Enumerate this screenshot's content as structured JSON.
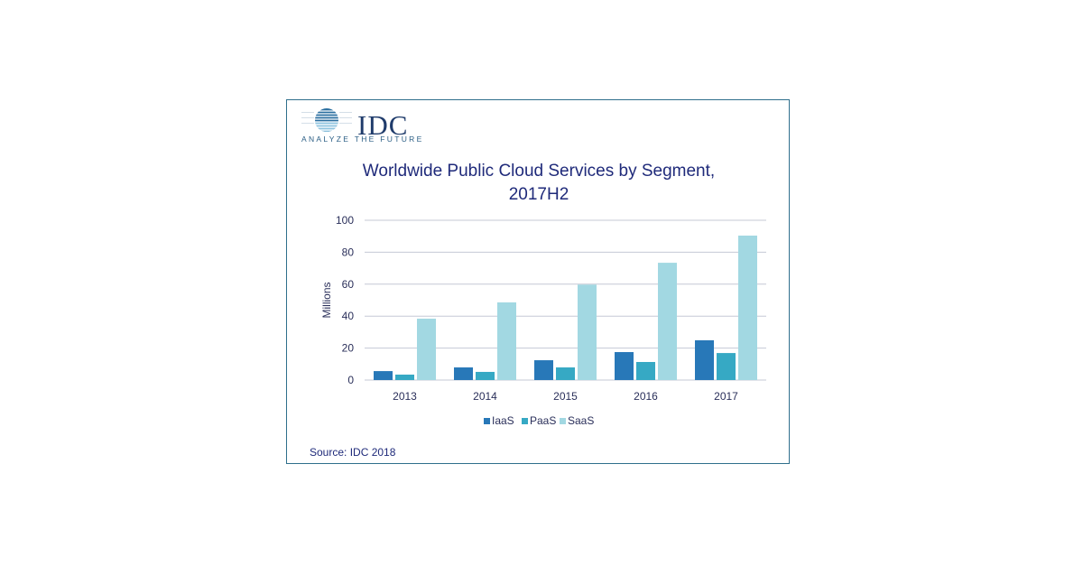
{
  "logo": {
    "text": "IDC",
    "tagline": "ANALYZE THE FUTURE"
  },
  "source": "Source: IDC 2018",
  "chart_data": {
    "type": "bar",
    "title": "Worldwide Public Cloud Services by Segment, 2017H2",
    "title_lines": [
      "Worldwide Public Cloud Services by Segment,",
      "2017H2"
    ],
    "xlabel": "",
    "ylabel": "Millions",
    "ylim": [
      0,
      100
    ],
    "yticks": [
      0,
      20,
      40,
      60,
      80,
      100
    ],
    "grid": true,
    "legend": "bottom",
    "categories": [
      "2013",
      "2014",
      "2015",
      "2016",
      "2017"
    ],
    "series": [
      {
        "name": "IaaS",
        "color": "#2878b8",
        "values": [
          5.6,
          7.9,
          12.4,
          17.5,
          24.9
        ]
      },
      {
        "name": "PaaS",
        "color": "#36a9c4",
        "values": [
          3.4,
          5.1,
          7.9,
          11.3,
          16.9
        ]
      },
      {
        "name": "SaaS",
        "color": "#a2d8e2",
        "values": [
          38.4,
          48.6,
          59.7,
          73.4,
          90.4
        ]
      }
    ]
  }
}
